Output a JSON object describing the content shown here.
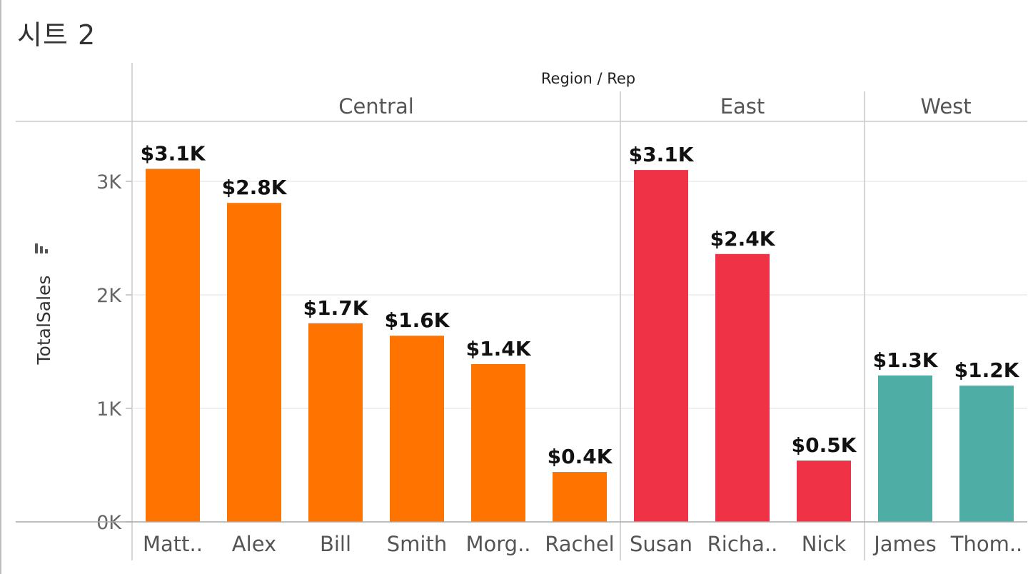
{
  "sheet": {
    "title": "시트 2"
  },
  "chart_data": {
    "type": "bar",
    "column_header": "Region / Rep",
    "ylabel": "TotalSales",
    "ylim": [
      0,
      3500
    ],
    "yticks": [
      0,
      1000,
      2000,
      3000
    ],
    "ytick_labels": [
      "0K",
      "1K",
      "2K",
      "3K"
    ],
    "grid": true,
    "colors": {
      "Central": "#FF7400",
      "East": "#F03246",
      "West": "#4EADA4"
    },
    "groups": [
      {
        "region": "Central",
        "reps": [
          "Matt..",
          "Alex",
          "Bill",
          "Smith",
          "Morg..",
          "Rachel"
        ],
        "values": [
          3110,
          2810,
          1750,
          1640,
          1390,
          440
        ],
        "labels": [
          "$3.1K",
          "$2.8K",
          "$1.7K",
          "$1.6K",
          "$1.4K",
          "$0.4K"
        ]
      },
      {
        "region": "East",
        "reps": [
          "Susan",
          "Richa..",
          "Nick"
        ],
        "values": [
          3100,
          2360,
          540
        ],
        "labels": [
          "$3.1K",
          "$2.4K",
          "$0.5K"
        ]
      },
      {
        "region": "West",
        "reps": [
          "James",
          "Thom.."
        ],
        "values": [
          1290,
          1200
        ],
        "labels": [
          "$1.3K",
          "$1.2K"
        ]
      }
    ]
  }
}
